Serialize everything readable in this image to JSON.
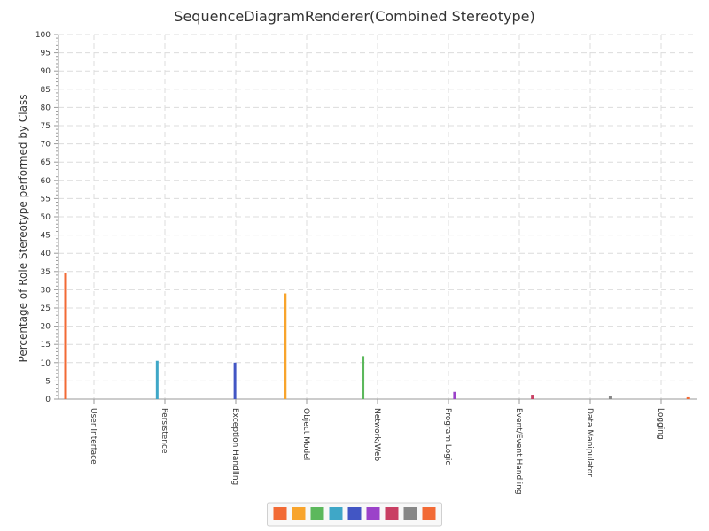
{
  "chart_data": {
    "type": "bar",
    "title": "SequenceDiagramRenderer(Combined Stereotype)",
    "xlabel": "",
    "ylabel": "Percentage of Role Stereotype performed by Class",
    "ylim": [
      0,
      100
    ],
    "yticks": [
      0,
      5,
      10,
      15,
      20,
      25,
      30,
      35,
      40,
      45,
      50,
      55,
      60,
      65,
      70,
      75,
      80,
      85,
      90,
      95,
      100
    ],
    "grid": true,
    "legend_position": "bottom-center",
    "categories": [
      "User Interface",
      "Persistence",
      "Exception Handling",
      "Object Model",
      "Network/Web",
      "Program Logic",
      "Event/Event Handling",
      "Data Manipulator",
      "Logging"
    ],
    "series": [
      {
        "values": [
          34.5,
          null,
          null,
          null,
          null,
          null,
          null,
          null,
          null
        ],
        "color": "#f26a35"
      },
      {
        "values": [
          null,
          null,
          null,
          29.0,
          null,
          null,
          null,
          null,
          null
        ],
        "color": "#f8a42c"
      },
      {
        "values": [
          null,
          null,
          null,
          null,
          11.8,
          null,
          null,
          null,
          null
        ],
        "color": "#5cb85c"
      },
      {
        "values": [
          null,
          10.5,
          null,
          null,
          null,
          null,
          null,
          null,
          null
        ],
        "color": "#3fa7c7"
      },
      {
        "values": [
          null,
          null,
          10.0,
          null,
          null,
          null,
          null,
          null,
          null
        ],
        "color": "#4256c4"
      },
      {
        "values": [
          null,
          null,
          null,
          null,
          null,
          2.0,
          null,
          null,
          null
        ],
        "color": "#9b42c9"
      },
      {
        "values": [
          null,
          null,
          null,
          null,
          null,
          null,
          1.2,
          null,
          null
        ],
        "color": "#c93f63"
      },
      {
        "values": [
          null,
          null,
          null,
          null,
          null,
          null,
          null,
          0.8,
          null
        ],
        "color": "#878787"
      },
      {
        "values": [
          null,
          null,
          null,
          null,
          null,
          null,
          null,
          null,
          0.5
        ],
        "color": "#f26a35"
      }
    ]
  }
}
